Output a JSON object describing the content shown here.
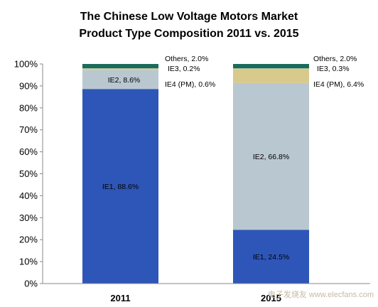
{
  "chart_data": {
    "type": "bar",
    "stacked": true,
    "percent": true,
    "title": [
      "The Chinese Low Voltage Motors Market",
      "Product Type Composition 2011 vs. 2015"
    ],
    "categories": [
      "2011",
      "2015"
    ],
    "ylim": [
      0,
      100
    ],
    "yticks": [
      "0%",
      "10%",
      "20%",
      "30%",
      "40%",
      "50%",
      "60%",
      "70%",
      "80%",
      "90%",
      "100%"
    ],
    "series": [
      {
        "name": "IE1",
        "color": "#2e56b8",
        "values": [
          88.6,
          24.5
        ],
        "labels": [
          "IE1, 88.6%",
          "IE1, 24.5%"
        ]
      },
      {
        "name": "IE2",
        "color": "#b9c7d0",
        "values": [
          8.6,
          66.8
        ],
        "labels": [
          "IE2, 8.6%",
          "IE2, 66.8%"
        ]
      },
      {
        "name": "IE4 (PM)",
        "color": "#d8c98c",
        "values": [
          0.6,
          6.4
        ],
        "labels": [
          "IE4 (PM), 0.6%",
          "IE4 (PM), 6.4%"
        ]
      },
      {
        "name": "IE3",
        "color": "#c4d3a0",
        "values": [
          0.2,
          0.3
        ],
        "labels": [
          "IE3, 0.2%",
          "IE3, 0.3%"
        ]
      },
      {
        "name": "Others",
        "color": "#1b6b5c",
        "values": [
          2.0,
          2.0
        ],
        "labels": [
          "Others, 2.0%",
          "Others, 2.0%"
        ]
      }
    ],
    "grid": false,
    "legend": "none"
  },
  "watermark": "电子发烧友 www.elecfans.com"
}
